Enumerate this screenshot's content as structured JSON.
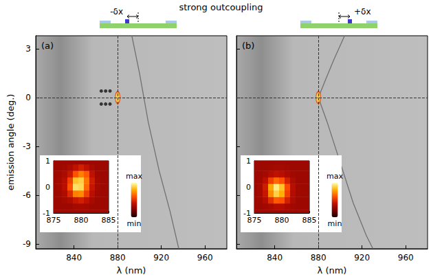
{
  "title": "strong outcoupling",
  "chart_data": [
    {
      "type": "scatter",
      "panel": "(a)",
      "subtitle": "-δx",
      "x_label": "λ (nm)",
      "y_label": "emission angle (deg.)",
      "xlim": [
        805,
        980
      ],
      "ylim": [
        -9.3,
        3.8
      ],
      "xticks": [
        840,
        880,
        920,
        960
      ],
      "yticks": [
        -9,
        -6,
        -3,
        0,
        3
      ],
      "grid": false,
      "reference_lines": {
        "x": 880,
        "y": 0
      },
      "series": [
        {
          "type": "line",
          "color": "#707070",
          "x": [
            893,
            900,
            908,
            918,
            928,
            936
          ],
          "values": [
            3.8,
            1.5,
            -1.5,
            -4.5,
            -7,
            -9.3
          ]
        },
        {
          "type": "scatter",
          "marker": "circle",
          "color": "#141414",
          "x": [
            865,
            865,
            869,
            869,
            873,
            873
          ],
          "values": [
            0.4,
            -0.4,
            0.4,
            -0.4,
            0.4,
            -0.4
          ]
        },
        {
          "type": "scatter",
          "marker": "ellipse",
          "color": "#ffd23c",
          "x": [
            880
          ],
          "values": [
            0
          ]
        }
      ],
      "inset": {
        "type": "heatmap",
        "x": [
          875,
          876,
          877,
          878,
          879,
          880,
          881,
          882,
          883,
          884,
          885
        ],
        "y": [
          -1,
          -0.75,
          -0.5,
          -0.25,
          0,
          0.25,
          0.5,
          0.75,
          1
        ],
        "values": [
          [
            0.3,
            0.3,
            0.3,
            0.3,
            0.3,
            0.3,
            0.3,
            0.3,
            0.3,
            0.3,
            0.3
          ],
          [
            0.3,
            0.3,
            0.3,
            0.3,
            0.32,
            0.33,
            0.32,
            0.3,
            0.3,
            0.3,
            0.3
          ],
          [
            0.3,
            0.3,
            0.32,
            0.35,
            0.42,
            0.45,
            0.4,
            0.33,
            0.3,
            0.3,
            0.3
          ],
          [
            0.3,
            0.31,
            0.35,
            0.48,
            0.7,
            0.72,
            0.55,
            0.38,
            0.31,
            0.3,
            0.3
          ],
          [
            0.3,
            0.32,
            0.38,
            0.6,
            0.92,
            0.9,
            0.65,
            0.42,
            0.32,
            0.3,
            0.3
          ],
          [
            0.3,
            0.32,
            0.37,
            0.55,
            0.85,
            0.88,
            0.68,
            0.44,
            0.32,
            0.3,
            0.3
          ],
          [
            0.3,
            0.31,
            0.34,
            0.42,
            0.6,
            0.7,
            0.62,
            0.4,
            0.31,
            0.3,
            0.3
          ],
          [
            0.3,
            0.3,
            0.31,
            0.34,
            0.4,
            0.45,
            0.4,
            0.33,
            0.3,
            0.3,
            0.3
          ],
          [
            0.3,
            0.3,
            0.3,
            0.3,
            0.3,
            0.3,
            0.3,
            0.3,
            0.3,
            0.3,
            0.3
          ]
        ],
        "xlim": [
          875,
          885
        ],
        "ylim": [
          -1,
          1
        ],
        "xticks": [
          875,
          880,
          885
        ],
        "yticks": [
          -1,
          0,
          1
        ],
        "colorbar": {
          "range": [
            0,
            1
          ],
          "labels": [
            "max",
            "min"
          ]
        }
      }
    },
    {
      "type": "scatter",
      "panel": "(b)",
      "subtitle": "+δx",
      "x_label": "λ (nm)",
      "xlim": [
        805,
        980
      ],
      "ylim": [
        -9.3,
        3.8
      ],
      "xticks": [
        840,
        880,
        920,
        960
      ],
      "yticks": [
        -9,
        -6,
        -3,
        0,
        3
      ],
      "grid": false,
      "tick_labels": "x",
      "reference_lines": {
        "x": 880,
        "y": 0
      },
      "series": [
        {
          "type": "line",
          "color": "#707070",
          "x": [
            904,
            894,
            886,
            880,
            888,
            900,
            912,
            924,
            930
          ],
          "values": [
            3.8,
            2.3,
            1,
            0,
            -1.5,
            -4,
            -6.5,
            -8.5,
            -9.3
          ]
        },
        {
          "type": "scatter",
          "marker": "ellipse",
          "color": "#ffd23c",
          "x": [
            880
          ],
          "values": [
            0
          ]
        }
      ],
      "inset": {
        "type": "heatmap",
        "x": [
          875,
          876,
          877,
          878,
          879,
          880,
          881,
          882,
          883,
          884,
          885
        ],
        "y": [
          -1,
          -0.75,
          -0.5,
          -0.25,
          0,
          0.25,
          0.5,
          0.75,
          1
        ],
        "values": [
          [
            0.3,
            0.3,
            0.3,
            0.3,
            0.3,
            0.3,
            0.3,
            0.3,
            0.3,
            0.3,
            0.3
          ],
          [
            0.3,
            0.3,
            0.31,
            0.33,
            0.36,
            0.36,
            0.33,
            0.31,
            0.3,
            0.3,
            0.3
          ],
          [
            0.3,
            0.31,
            0.36,
            0.5,
            0.62,
            0.6,
            0.45,
            0.34,
            0.3,
            0.3,
            0.3
          ],
          [
            0.3,
            0.32,
            0.42,
            0.72,
            0.88,
            0.8,
            0.55,
            0.36,
            0.31,
            0.3,
            0.3
          ],
          [
            0.3,
            0.32,
            0.44,
            0.78,
            0.95,
            0.85,
            0.58,
            0.37,
            0.31,
            0.3,
            0.3
          ],
          [
            0.3,
            0.31,
            0.38,
            0.55,
            0.65,
            0.6,
            0.45,
            0.34,
            0.3,
            0.3,
            0.3
          ],
          [
            0.3,
            0.3,
            0.32,
            0.36,
            0.4,
            0.38,
            0.34,
            0.31,
            0.3,
            0.3,
            0.3
          ],
          [
            0.3,
            0.3,
            0.3,
            0.31,
            0.32,
            0.32,
            0.31,
            0.3,
            0.3,
            0.3,
            0.3
          ],
          [
            0.3,
            0.3,
            0.3,
            0.3,
            0.3,
            0.3,
            0.3,
            0.3,
            0.3,
            0.3,
            0.3
          ]
        ],
        "xlim": [
          875,
          885
        ],
        "ylim": [
          -1,
          1
        ],
        "xticks": [
          875,
          880,
          885
        ],
        "yticks": [
          -1,
          0,
          1
        ],
        "colorbar": {
          "range": [
            0,
            1
          ],
          "labels": [
            "max",
            "min"
          ]
        }
      }
    }
  ]
}
